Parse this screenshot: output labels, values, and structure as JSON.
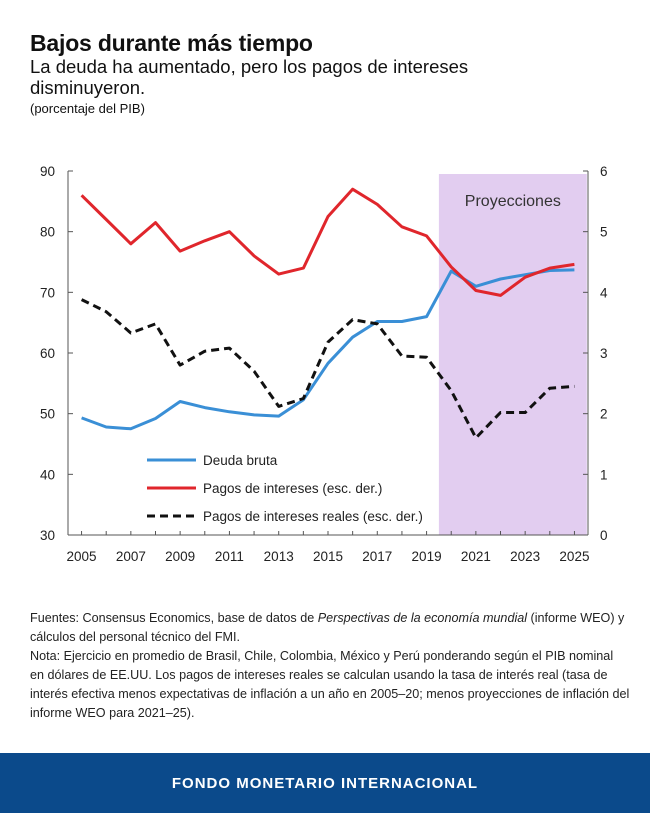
{
  "header": {
    "title": "Bajos durante más tiempo",
    "subtitle": "La deuda ha aumentado, pero los pagos de intereses disminuyeron.",
    "units": "(porcentaje del PIB)"
  },
  "chart_data": {
    "type": "line",
    "x": [
      2005,
      2006,
      2007,
      2008,
      2009,
      2010,
      2011,
      2012,
      2013,
      2014,
      2015,
      2016,
      2017,
      2018,
      2019,
      2020,
      2021,
      2022,
      2023,
      2024,
      2025
    ],
    "x_tick_labels": [
      "2005",
      "2007",
      "2009",
      "2011",
      "2013",
      "2015",
      "2017",
      "2019",
      "2021",
      "2023",
      "2025"
    ],
    "left_axis": {
      "ylim": [
        30,
        90
      ],
      "ticks": [
        "30",
        "40",
        "50",
        "60",
        "70",
        "80",
        "90"
      ]
    },
    "right_axis": {
      "ylim": [
        0,
        6
      ],
      "ticks": [
        "0",
        "1",
        "2",
        "3",
        "4",
        "5",
        "6"
      ]
    },
    "projection": {
      "label": "Proyecciones",
      "start": 2019.5,
      "end": 2025.5,
      "color": "#e2cdf0"
    },
    "series": [
      {
        "name": "Deuda bruta",
        "axis": "left",
        "color": "#3a8fd6",
        "style": "solid",
        "values": [
          49.3,
          47.8,
          47.5,
          49.2,
          52.0,
          51.0,
          50.3,
          49.8,
          49.6,
          52.3,
          58.3,
          62.6,
          65.2,
          65.2,
          66.0,
          73.5,
          71.0,
          72.2,
          72.9,
          73.6,
          73.7
        ]
      },
      {
        "name": "Pagos de intereses (esc. der.)",
        "axis": "right",
        "color": "#e0262c",
        "style": "solid",
        "values": [
          5.6,
          5.2,
          4.8,
          5.15,
          4.68,
          4.85,
          5.0,
          4.6,
          4.3,
          4.4,
          5.25,
          5.7,
          5.45,
          5.08,
          4.93,
          4.42,
          4.03,
          3.95,
          4.25,
          4.4,
          4.46
        ]
      },
      {
        "name": "Pagos de intereses reales (esc. der.)",
        "axis": "right",
        "color": "#111111",
        "style": "dashed",
        "values": [
          3.88,
          3.68,
          3.33,
          3.48,
          2.8,
          3.03,
          3.08,
          2.7,
          2.12,
          2.25,
          3.18,
          3.55,
          3.48,
          2.95,
          2.93,
          2.38,
          1.6,
          2.02,
          2.02,
          2.42,
          2.45
        ]
      }
    ],
    "legend": {
      "placement": "bottom-left"
    },
    "grid": false
  },
  "notes": {
    "sources_pre": "Fuentes: Consensus Economics,  base de datos de ",
    "sources_italic": "Perspectivas de la economía mundial",
    "sources_post": " (informe WEO) y cálculos del personal técnico del FMI.",
    "note": "Nota: Ejercicio en promedio de Brasil, Chile, Colombia, México y Perú ponderando según el PIB nominal en dólares de EE.UU. Los pagos de intereses reales se calculan usando la tasa de interés real (tasa de interés efectiva menos expectativas de inflación a un año en 2005–20; menos proyecciones de inflación del informe WEO para 2021–25)."
  },
  "footer": {
    "label": "FONDO MONETARIO INTERNACIONAL"
  }
}
